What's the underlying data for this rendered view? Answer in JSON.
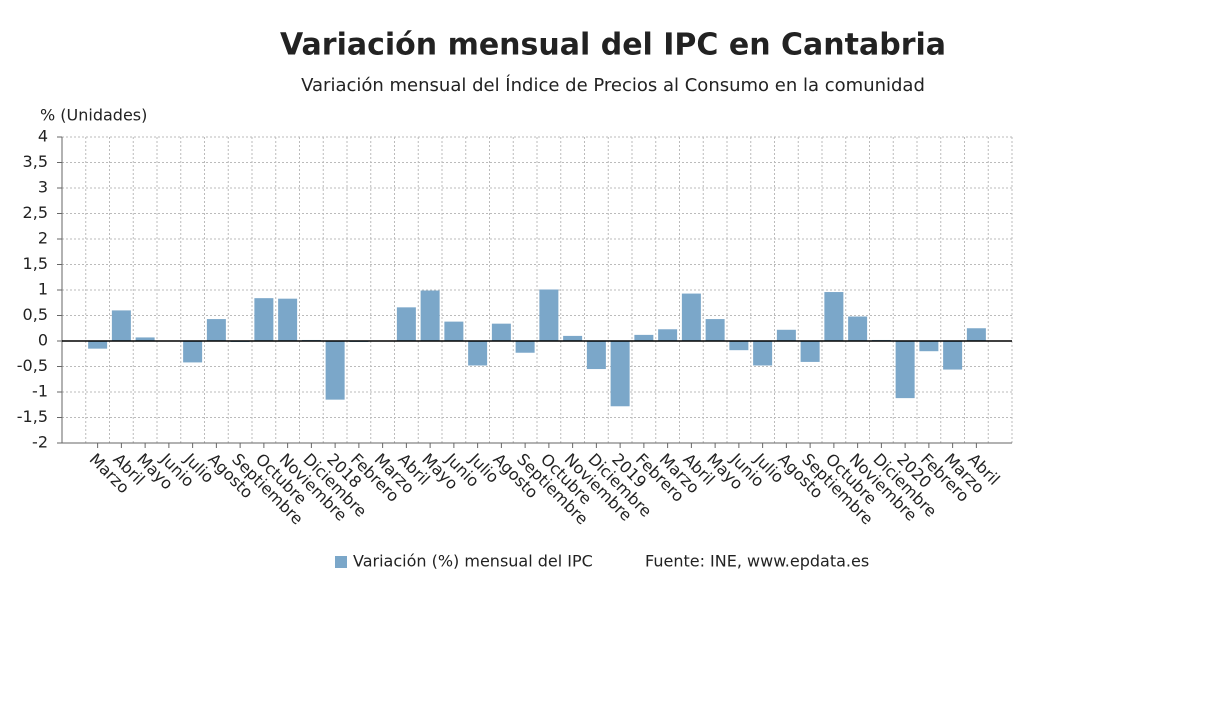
{
  "chart_data": {
    "type": "bar",
    "title": "Variación mensual del IPC en Cantabria",
    "subtitle": "Variación mensual del Índice de Precios al Consumo en la comunidad",
    "y_axis_label": "% (Unidades)",
    "source": "Fuente: INE, www.epdata.es",
    "categories": [
      null,
      "Marzo",
      "Abril",
      "Mayo",
      "Junio",
      "Julio",
      "Agosto",
      "Septiembre",
      "Octubre",
      "Noviembre",
      "Diciembre",
      "2018",
      "Febrero",
      "Marzo",
      "Abril",
      "Mayo",
      "Junio",
      "Julio",
      "Agosto",
      "Septiembre",
      "Octubre",
      "Noviembre",
      "Diciembre",
      "2019",
      "Febrero",
      "Marzo",
      "Abril",
      "Mayo",
      "Junio",
      "Julio",
      "Agosto",
      "Septiembre",
      "Octubre",
      "Noviembre",
      "Diciembre",
      "2020",
      "Febrero",
      "Marzo",
      "Abril",
      null
    ],
    "series": [
      {
        "name": "Variación (%) mensual del IPC",
        "color": "#7ba7c9",
        "values": [
          null,
          -0.15,
          0.6,
          0.07,
          0,
          -0.42,
          0.43,
          -0.02,
          0.84,
          0.83,
          0.02,
          -1.15,
          -0.02,
          0,
          0.66,
          0.99,
          0.38,
          -0.48,
          0.34,
          -0.23,
          1.01,
          0.1,
          -0.55,
          -1.28,
          0.12,
          0.23,
          0.93,
          0.43,
          -0.18,
          -0.48,
          0.22,
          -0.41,
          0.96,
          0.48,
          0.02,
          -1.12,
          -0.2,
          -0.56,
          0.25,
          null
        ]
      }
    ],
    "ylim": [
      -2,
      4
    ],
    "yticks": [
      -2,
      {
        "value": -1.5,
        "label": "-1,5"
      },
      -1,
      {
        "value": -0.5,
        "label": "-0,5"
      },
      0,
      {
        "value": 0.5,
        "label": "0,5"
      },
      1,
      {
        "value": 1.5,
        "label": "1,5"
      },
      2,
      {
        "value": 2.5,
        "label": "2,5"
      },
      3,
      {
        "value": 3.5,
        "label": "3,5"
      },
      4
    ],
    "grid": true
  }
}
